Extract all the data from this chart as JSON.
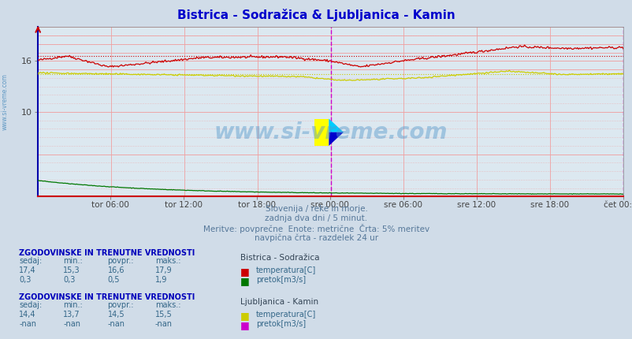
{
  "title": "Bistrica - Sodražica & Ljubljanica - Kamin",
  "title_color": "#0000cc",
  "fig_bg_color": "#d0dce8",
  "plot_bg_color": "#dce8f0",
  "n_points": 576,
  "y_min": 0,
  "y_max": 20,
  "x_tick_labels": [
    "tor 06:00",
    "tor 12:00",
    "tor 18:00",
    "sre 00:00",
    "sre 06:00",
    "sre 12:00",
    "sre 18:00",
    "čet 00:00"
  ],
  "bistrica_temp_avg": 16.6,
  "bistrica_temp_min": 15.3,
  "bistrica_temp_max": 17.9,
  "bistrica_pretok_avg": 0.5,
  "bistrica_pretok_min": 0.3,
  "bistrica_pretok_max": 1.9,
  "ljubljanica_temp_avg": 14.5,
  "ljubljanica_temp_min": 13.7,
  "ljubljanica_temp_max": 15.5,
  "red_color": "#cc0000",
  "dark_red_color": "#880000",
  "green_color": "#007700",
  "yellow_color": "#cccc00",
  "magenta_color": "#cc00cc",
  "pink_vgrid_color": "#f0a0a0",
  "pink_hgrid_color": "#f0a0a0",
  "yellow_hgrid_color": "#e8e870",
  "subtitle_lines": [
    "Slovenija / reke in morje.",
    "zadnja dva dni / 5 minut.",
    "Meritve: povprečne  Enote: metrične  Črta: 5% meritev",
    "navpična črta - razdelek 24 ur"
  ],
  "table1_header": "ZGODOVINSKE IN TRENUTNE VREDNOSTI",
  "table1_cols": [
    "sedaj:",
    "min.:",
    "povpr.:",
    "maks.:"
  ],
  "table1_row1": [
    "17,4",
    "15,3",
    "16,6",
    "17,9"
  ],
  "table1_row2": [
    "0,3",
    "0,3",
    "0,5",
    "1,9"
  ],
  "table1_station": "Bistrica - Sodražica",
  "table1_series": [
    "temperatura[C]",
    "pretok[m3/s]"
  ],
  "table1_colors": [
    "#cc0000",
    "#007700"
  ],
  "table2_header": "ZGODOVINSKE IN TRENUTNE VREDNOSTI",
  "table2_cols": [
    "sedaj:",
    "min.:",
    "povpr.:",
    "maks.:"
  ],
  "table2_row1": [
    "14,4",
    "13,7",
    "14,5",
    "15,5"
  ],
  "table2_row2": [
    "-nan",
    "-nan",
    "-nan",
    "-nan"
  ],
  "table2_station": "Ljubljanica - Kamin",
  "table2_series": [
    "temperatura[C]",
    "pretok[m3/s]"
  ],
  "table2_colors": [
    "#cccc00",
    "#cc00cc"
  ],
  "watermark": "www.si-vreme.com",
  "watermark_color": "#5599cc",
  "logo_yellow": "#ffff00",
  "logo_cyan": "#00ccff",
  "logo_blue": "#0000cc"
}
